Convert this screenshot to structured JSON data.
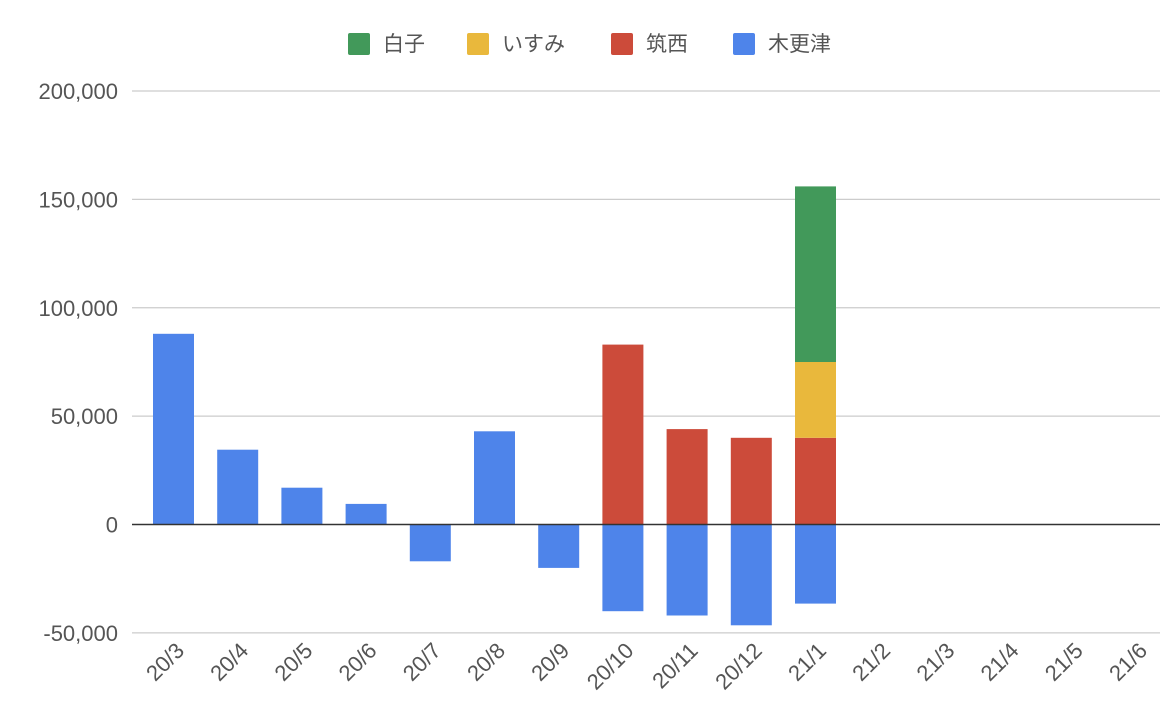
{
  "chart_data": {
    "type": "bar",
    "stacked": true,
    "categories": [
      "20/3",
      "20/4",
      "20/5",
      "20/6",
      "20/7",
      "20/8",
      "20/9",
      "20/10",
      "20/11",
      "20/12",
      "21/1",
      "21/2",
      "21/3",
      "21/4",
      "21/5",
      "21/6"
    ],
    "series": [
      {
        "name": "木更津",
        "color": "#4e84ea",
        "values": [
          88000,
          34500,
          17000,
          9500,
          -17000,
          43000,
          -20000,
          -40000,
          -42000,
          -46500,
          -36500,
          0,
          0,
          0,
          0,
          0
        ]
      },
      {
        "name": "筑西",
        "color": "#cc4b3a",
        "values": [
          0,
          0,
          0,
          0,
          0,
          0,
          0,
          83000,
          44000,
          40000,
          40000,
          0,
          0,
          0,
          0,
          0
        ]
      },
      {
        "name": "いすみ",
        "color": "#e9b83c",
        "values": [
          0,
          0,
          0,
          0,
          0,
          0,
          0,
          0,
          0,
          0,
          35000,
          0,
          0,
          0,
          0,
          0
        ]
      },
      {
        "name": "白子",
        "color": "#42995a",
        "values": [
          0,
          0,
          0,
          0,
          0,
          0,
          0,
          0,
          0,
          0,
          81000,
          0,
          0,
          0,
          0,
          0
        ]
      }
    ],
    "legend_order": [
      "白子",
      "いすみ",
      "筑西",
      "木更津"
    ],
    "legend_position": "top",
    "ylim": [
      -50000,
      200000
    ],
    "yticks": [
      -50000,
      0,
      50000,
      100000,
      150000,
      200000
    ],
    "ytick_labels": [
      "-50,000",
      "0",
      "50,000",
      "100,000",
      "150,000",
      "200,000"
    ],
    "grid": true,
    "title": "",
    "xlabel": "",
    "ylabel": ""
  }
}
